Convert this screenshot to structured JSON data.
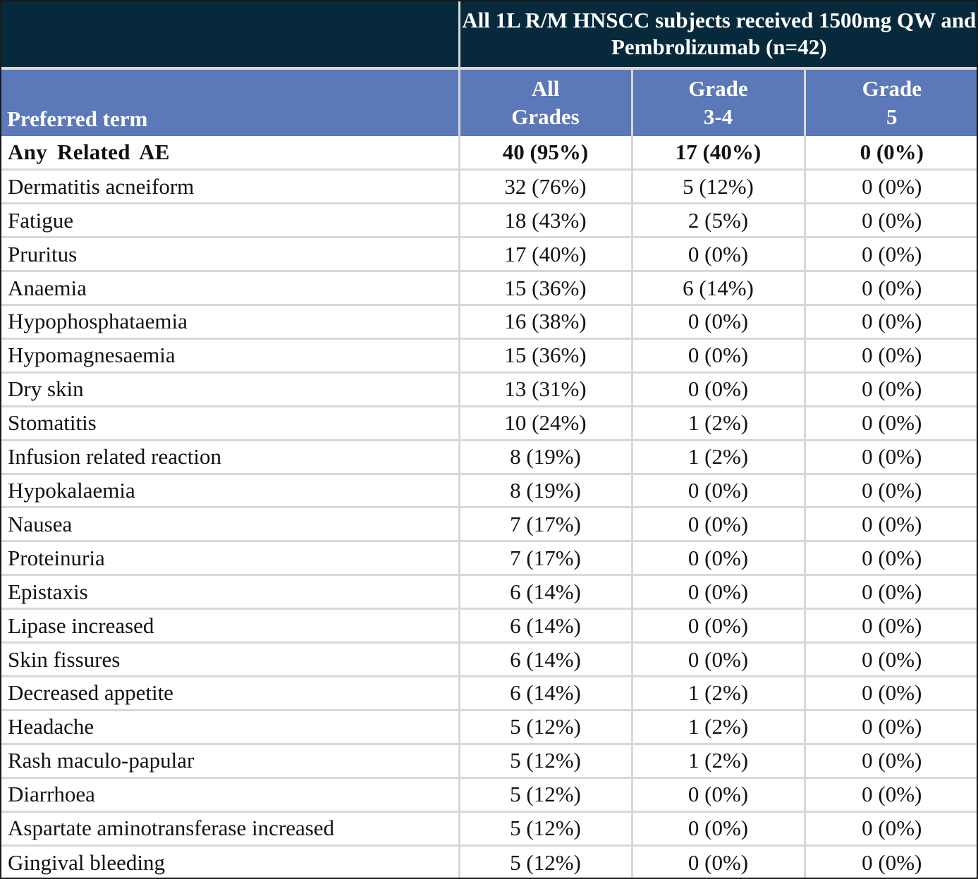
{
  "table": {
    "group_header_line1": "All 1L R/M HNSCC subjects received",
    "group_header_line2": "1500mg QW and Pembrolizumab (n=42)",
    "columns": {
      "term": "Preferred term",
      "all_grades": [
        "All",
        "Grades"
      ],
      "grade_3_4": [
        "Grade",
        "3-4"
      ],
      "grade_5": [
        "Grade",
        "5"
      ]
    },
    "rows": [
      {
        "term": "Any  Related  AE",
        "all": "40 (95%)",
        "g34": "17 (40%)",
        "g5": "0 (0%)"
      },
      {
        "term": "Dermatitis acneiform",
        "all": "32 (76%)",
        "g34": "5 (12%)",
        "g5": "0 (0%)"
      },
      {
        "term": "Fatigue",
        "all": "18 (43%)",
        "g34": "2 (5%)",
        "g5": "0 (0%)"
      },
      {
        "term": "Pruritus",
        "all": "17 (40%)",
        "g34": "0 (0%)",
        "g5": "0 (0%)"
      },
      {
        "term": "Anaemia",
        "all": "15 (36%)",
        "g34": "6 (14%)",
        "g5": "0 (0%)"
      },
      {
        "term": "Hypophosphataemia",
        "all": "16 (38%)",
        "g34": "0 (0%)",
        "g5": "0 (0%)"
      },
      {
        "term": "Hypomagnesaemia",
        "all": "15 (36%)",
        "g34": "0 (0%)",
        "g5": "0 (0%)"
      },
      {
        "term": "Dry skin",
        "all": "13 (31%)",
        "g34": "0 (0%)",
        "g5": "0 (0%)"
      },
      {
        "term": "Stomatitis",
        "all": "10 (24%)",
        "g34": "1 (2%)",
        "g5": "0 (0%)"
      },
      {
        "term": "Infusion related reaction",
        "all": "8 (19%)",
        "g34": "1 (2%)",
        "g5": "0 (0%)"
      },
      {
        "term": "Hypokalaemia",
        "all": "8 (19%)",
        "g34": "0 (0%)",
        "g5": "0 (0%)"
      },
      {
        "term": "Nausea",
        "all": "7 (17%)",
        "g34": "0 (0%)",
        "g5": "0 (0%)"
      },
      {
        "term": "Proteinuria",
        "all": "7 (17%)",
        "g34": "0 (0%)",
        "g5": "0 (0%)"
      },
      {
        "term": "Epistaxis",
        "all": "6 (14%)",
        "g34": "0 (0%)",
        "g5": "0 (0%)"
      },
      {
        "term": "Lipase increased",
        "all": "6 (14%)",
        "g34": "0 (0%)",
        "g5": "0 (0%)"
      },
      {
        "term": "Skin fissures",
        "all": "6 (14%)",
        "g34": "0 (0%)",
        "g5": "0 (0%)"
      },
      {
        "term": "Decreased appetite",
        "all": "6 (14%)",
        "g34": "1 (2%)",
        "g5": "0 (0%)"
      },
      {
        "term": "Headache",
        "all": "5 (12%)",
        "g34": "1 (2%)",
        "g5": "0 (0%)"
      },
      {
        "term": "Rash maculo-papular",
        "all": "5 (12%)",
        "g34": "1 (2%)",
        "g5": "0 (0%)"
      },
      {
        "term": "Diarrhoea",
        "all": "5 (12%)",
        "g34": "0 (0%)",
        "g5": "0 (0%)"
      },
      {
        "term": "Aspartate aminotransferase increased",
        "all": "5 (12%)",
        "g34": "0 (0%)",
        "g5": "0 (0%)"
      },
      {
        "term": "Gingival bleeding",
        "all": "5 (12%)",
        "g34": "0 (0%)",
        "g5": "0 (0%)"
      }
    ],
    "colors": {
      "group_header_bg": "#062a3c",
      "column_header_bg": "#5b78b9",
      "gridline": "#d8d8d8"
    }
  }
}
